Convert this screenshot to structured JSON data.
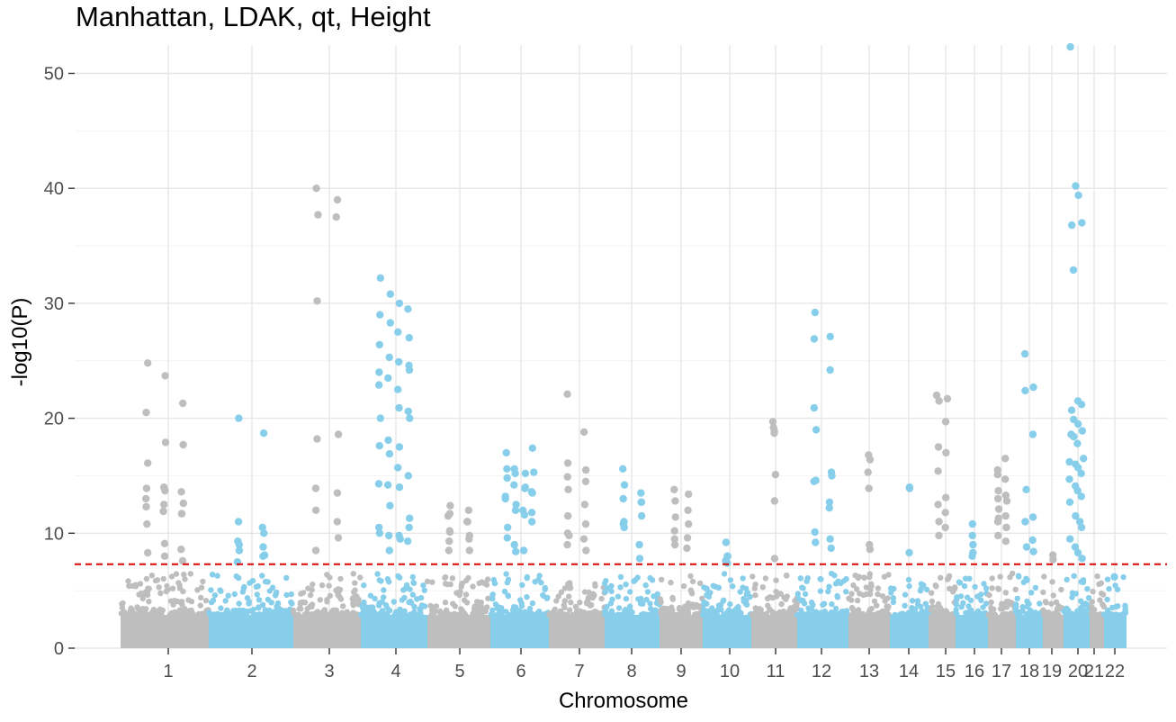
{
  "chart_data": {
    "type": "scatter",
    "title": "Manhattan, LDAK, qt, Height",
    "xlabel": "Chromosome",
    "ylabel": "-log10(P)",
    "ylim": [
      0,
      52.5
    ],
    "y_ticks": [
      0,
      10,
      20,
      30,
      40,
      50
    ],
    "grid": true,
    "legend": "none",
    "significance_threshold": {
      "value": 7.3,
      "color": "#dd0000",
      "style": "dashed"
    },
    "colors": {
      "odd": "#bebebe",
      "even": "#87ceeb"
    },
    "chromosomes": [
      {
        "label": "1",
        "peaks": [
          24.8,
          23.7,
          21.3,
          20.5,
          17.9,
          17.7,
          16.1,
          14.0,
          13.6,
          13.0,
          12.5,
          11.7,
          10.8,
          9.1,
          8.6,
          13.9,
          13.7,
          12.6,
          12.3,
          11.9,
          11.7,
          8.3,
          8.0,
          7.6
        ]
      },
      {
        "label": "2",
        "peaks": [
          20.0,
          18.7,
          11.0,
          10.5,
          9.3,
          8.8,
          8.5,
          8.0,
          7.5,
          10.0,
          9.0,
          8.1
        ]
      },
      {
        "label": "3",
        "peaks": [
          40.0,
          39.0,
          37.7,
          37.5,
          30.2,
          18.6,
          18.2,
          13.5,
          12.0,
          11.0,
          13.9,
          9.6,
          8.5
        ]
      },
      {
        "label": "4",
        "peaks": [
          32.2,
          30.8,
          30.0,
          29.5,
          29.0,
          28.3,
          27.5,
          27.0,
          26.4,
          25.3,
          24.9,
          24.6,
          24.0,
          23.5,
          22.5,
          20.6,
          20.0,
          18.1,
          17.5,
          10.5,
          10.0,
          8.5,
          20.9,
          20.0,
          17.6,
          14.2,
          14.0,
          11.3,
          10.5,
          9.8,
          9.5,
          24.2,
          22.9,
          16.9,
          15.7,
          15.0,
          14.3,
          12.4,
          9.8,
          9.3
        ]
      },
      {
        "label": "5",
        "peaks": [
          11.7,
          11.0,
          10.2,
          9.8,
          12.4,
          12.0,
          11.5,
          11.0,
          9.3,
          8.5,
          10.1,
          9.5,
          8.5
        ]
      },
      {
        "label": "6",
        "peaks": [
          15.6,
          15.2,
          14.0,
          13.5,
          13.0,
          12.5,
          12.0,
          11.0,
          10.5,
          9.0,
          8.5,
          15.3,
          14.8,
          14.2,
          13.9,
          13.6,
          13.2,
          12.0,
          11.6,
          17.4,
          17.0,
          15.6,
          15.2,
          11.8,
          9.6,
          8.4
        ]
      },
      {
        "label": "7",
        "peaks": [
          16.1,
          15.5,
          14.9,
          14.5,
          13.8,
          12.5,
          11.5,
          10.8,
          22.1,
          18.8,
          10.0,
          9.5,
          9.0,
          8.5,
          9.8
        ]
      },
      {
        "label": "8",
        "peaks": [
          15.6,
          12.7,
          10.8,
          11.5,
          10.5,
          9.0,
          14.2,
          13.5,
          13.0,
          12.7,
          11.0,
          7.8
        ]
      },
      {
        "label": "9",
        "peaks": [
          13.8,
          13.4,
          12.8,
          12.0,
          11.4,
          10.8,
          10.2,
          9.6,
          9.0,
          8.7,
          9.5
        ]
      },
      {
        "label": "10",
        "peaks": [
          9.2,
          8.0,
          7.6,
          7.4,
          8.0
        ]
      },
      {
        "label": "11",
        "peaks": [
          19.7,
          19.2,
          18.9,
          18.7,
          15.1,
          12.8,
          7.8
        ]
      },
      {
        "label": "12",
        "peaks": [
          29.2,
          27.1,
          26.9,
          24.2,
          20.9,
          15.0,
          14.5,
          12.2,
          9.2,
          8.7,
          19.0,
          15.3,
          14.6,
          12.7,
          10.1,
          9.5
        ]
      },
      {
        "label": "13",
        "peaks": [
          16.8,
          16.4,
          15.3,
          13.9,
          9.0,
          8.6
        ]
      },
      {
        "label": "14",
        "peaks": [
          14.0,
          13.9,
          8.3
        ]
      },
      {
        "label": "15",
        "peaks": [
          22.0,
          21.7,
          21.5,
          19.7,
          17.5,
          17.0,
          15.4,
          13.1,
          12.5,
          11.8,
          11.0,
          10.5,
          9.8
        ]
      },
      {
        "label": "16",
        "peaks": [
          10.8,
          9.8,
          9.0,
          8.3,
          8.0
        ]
      },
      {
        "label": "17",
        "peaks": [
          13.7,
          13.3,
          12.1,
          11.5,
          11.0,
          10.5,
          9.8,
          9.3,
          15.1,
          16.5,
          15.5,
          14.7,
          13.0,
          12.8,
          11.3,
          10.5
        ]
      },
      {
        "label": "18",
        "peaks": [
          25.6,
          22.7,
          22.4,
          18.6,
          13.8,
          11.4,
          11.0,
          9.4,
          8.8,
          8.4
        ]
      },
      {
        "label": "19",
        "peaks": [
          8.1,
          7.7
        ]
      },
      {
        "label": "20",
        "peaks": [
          52.3,
          40.2,
          39.4,
          37.0,
          36.8,
          32.9,
          21.5,
          21.2,
          20.7,
          19.9,
          19.5,
          18.9,
          18.6,
          18.4,
          17.8,
          16.5,
          16.2,
          16.0,
          15.7,
          15.2,
          14.7,
          14.1,
          13.7,
          13.2,
          12.7,
          11.5,
          11.0,
          10.5,
          9.5,
          8.8,
          8.3,
          7.8
        ]
      },
      {
        "label": "21",
        "peaks": []
      },
      {
        "label": "22",
        "peaks": [
          6.2
        ]
      }
    ]
  }
}
